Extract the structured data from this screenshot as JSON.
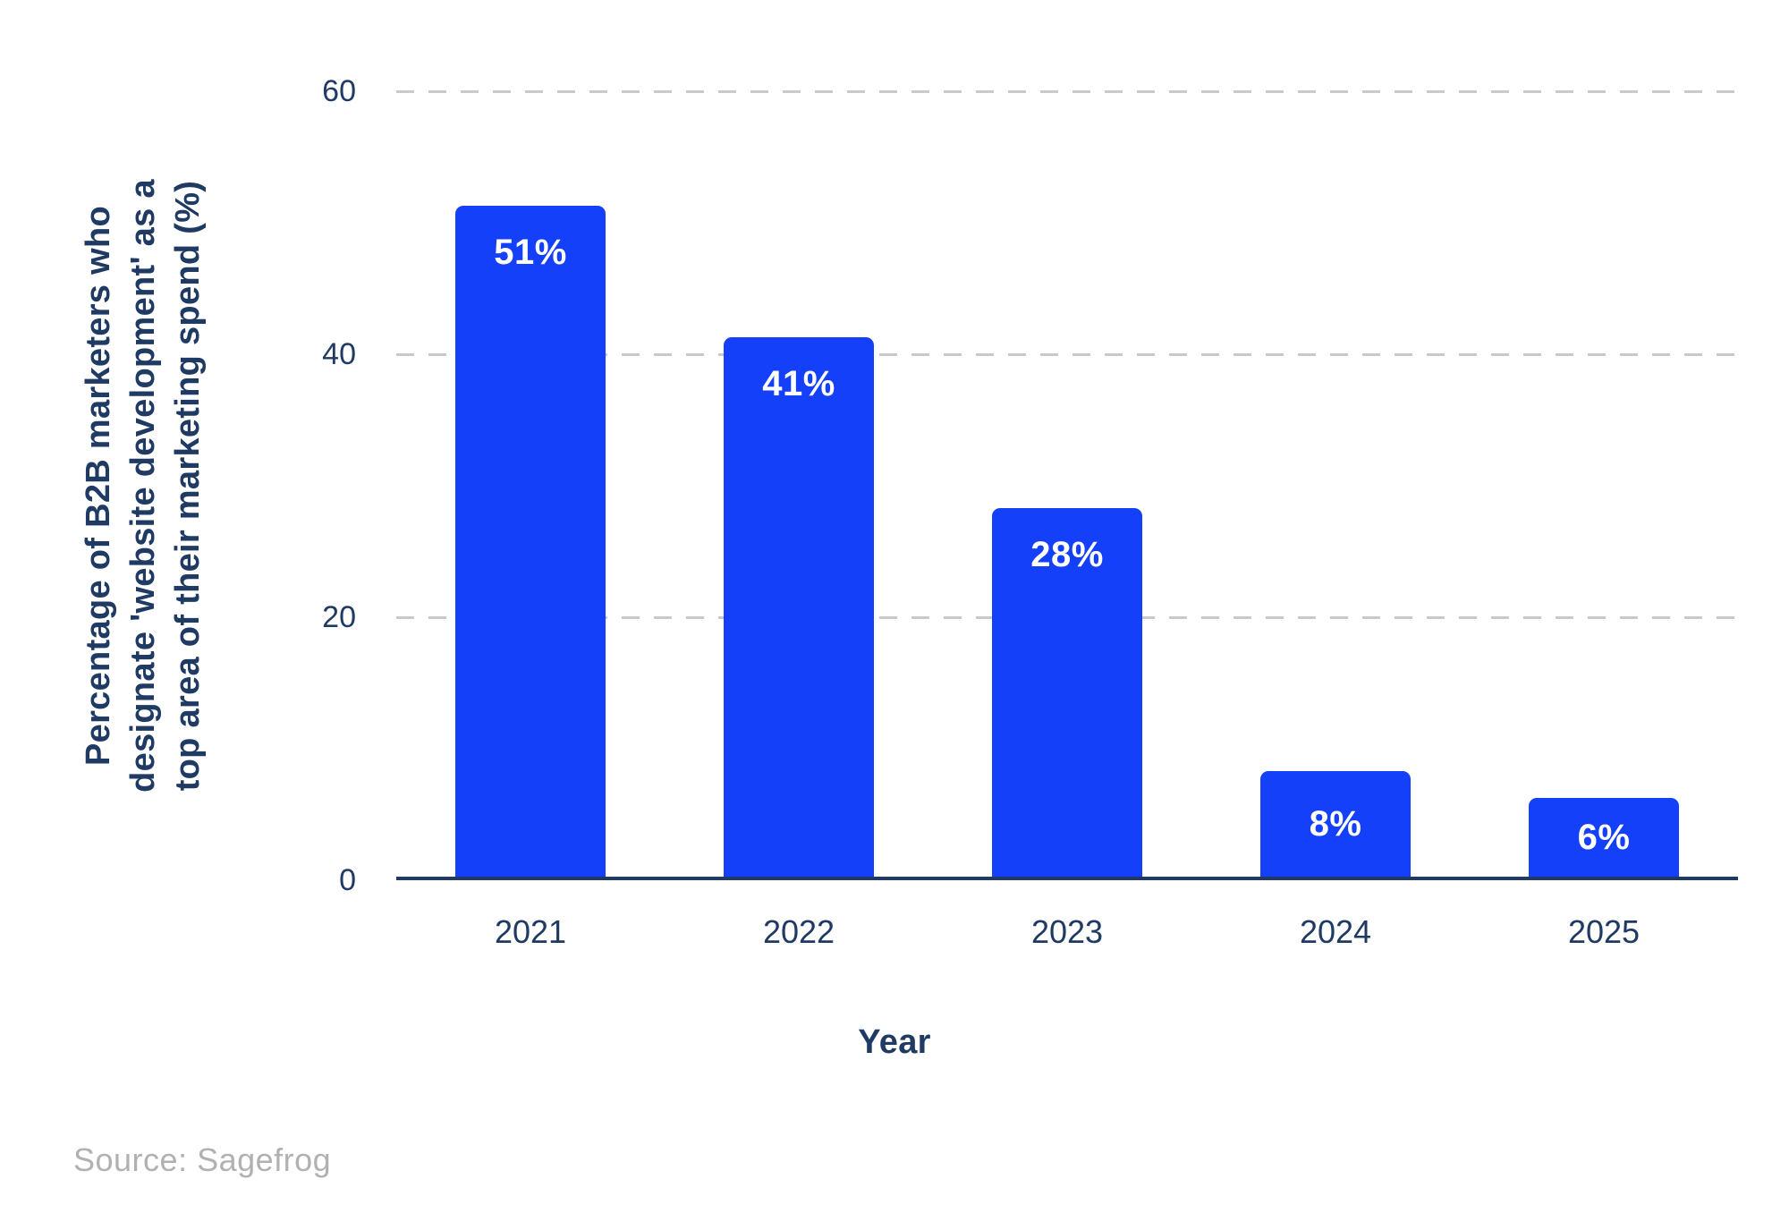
{
  "chart_data": {
    "type": "bar",
    "categories": [
      "2021",
      "2022",
      "2023",
      "2024",
      "2025"
    ],
    "values": [
      51,
      41,
      28,
      8,
      6
    ],
    "bar_labels": [
      "51%",
      "41%",
      "28%",
      "8%",
      "6%"
    ],
    "title": "",
    "xlabel": "Year",
    "ylabel": "Percentage of B2B marketers who designate 'website development' as a top area of their marketing spend (%)",
    "ylabel_lines": [
      "Percentage of B2B marketers who",
      "designate 'website development' as a",
      "top area of their marketing spend (%)"
    ],
    "yticks": [
      60,
      40,
      20,
      0
    ],
    "ytick_labels": [
      "60",
      "40",
      "20",
      "0"
    ],
    "gridline_values": [
      60,
      40,
      20
    ],
    "ylim": [
      0,
      60
    ],
    "grid": "horizontal-dashed",
    "legend": "none"
  },
  "source": {
    "label": "Source: Sagefrog"
  },
  "colors": {
    "bar": "#1540FA",
    "axis_text": "#1F3A63",
    "gridline": "#C9C9C9",
    "bar_label_text": "#FFFFFF",
    "source_text": "#B1B1B1",
    "background": "#FFFFFF"
  }
}
